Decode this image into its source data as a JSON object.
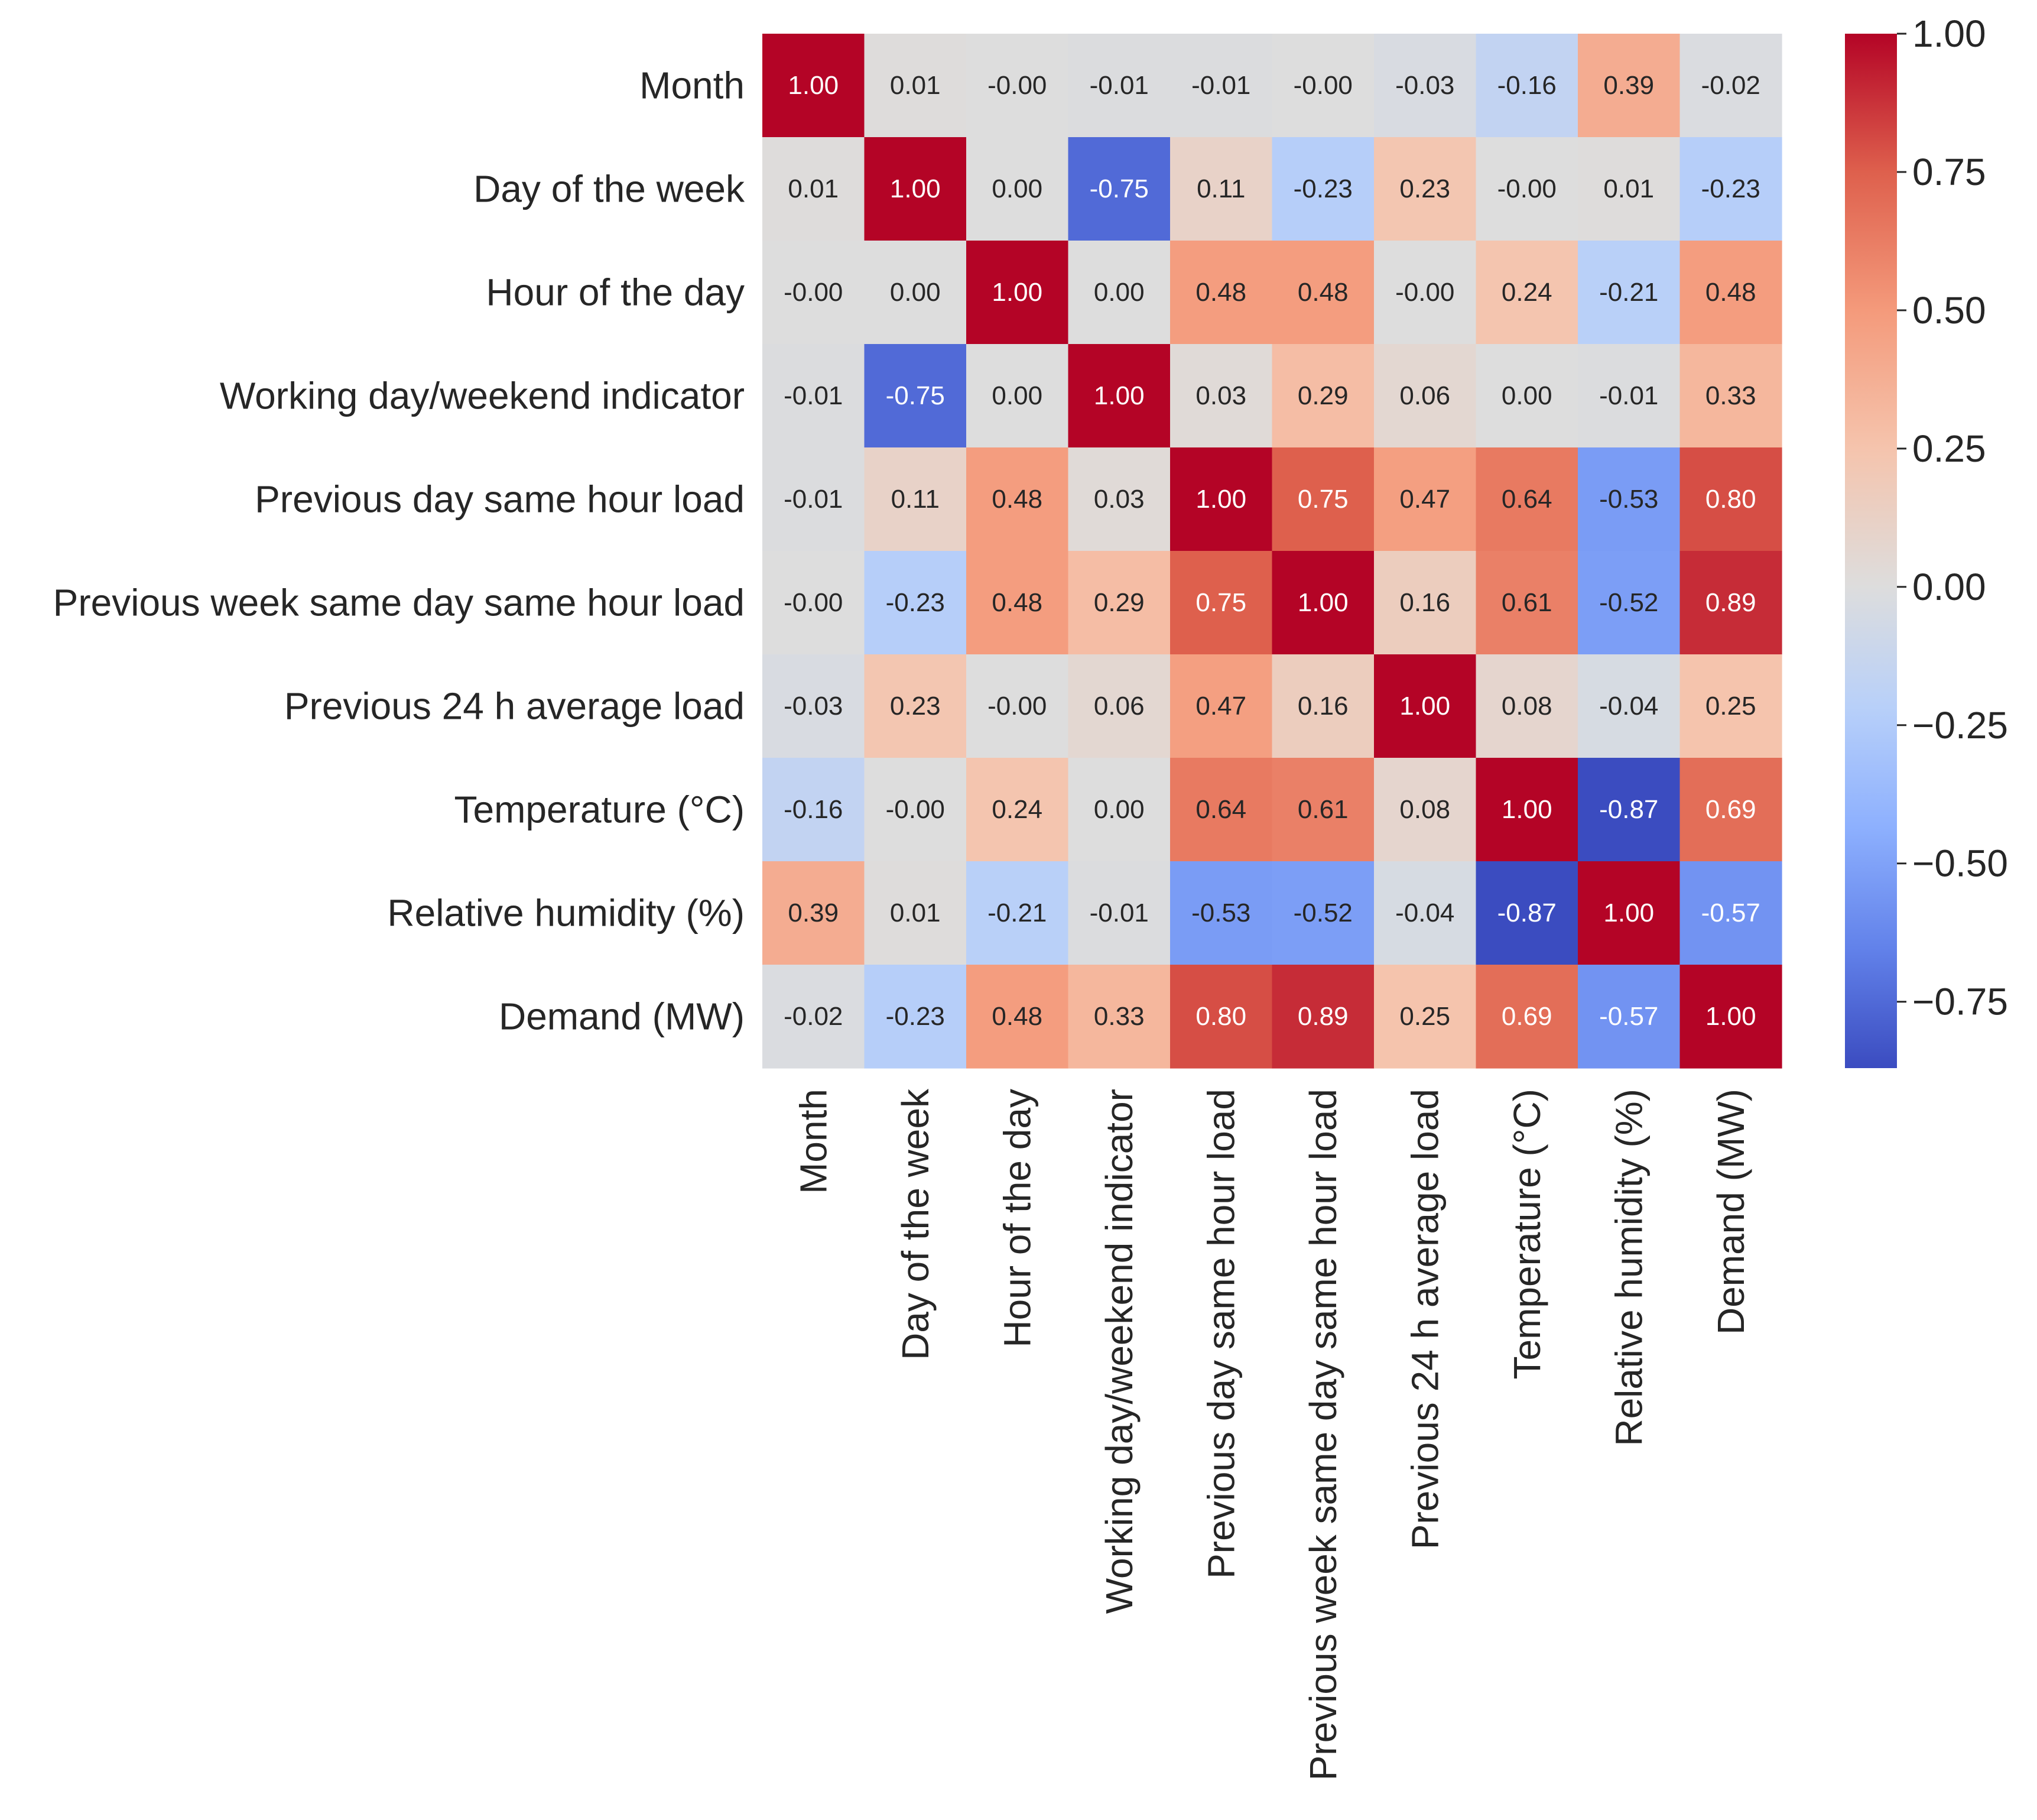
{
  "chart_data": {
    "type": "heatmap",
    "title": "",
    "colormap": "coolwarm",
    "variables": [
      "Month",
      "Day of the week",
      "Hour of the day",
      "Working day/weekend indicator",
      "Previous day same hour load",
      "Previous week same day same hour load",
      "Previous 24 h average load",
      "Temperature (°C)",
      "Relative humidity (%)",
      "Demand (MW)"
    ],
    "labels": [
      [
        "1.00",
        "0.01",
        "-0.00",
        "-0.01",
        "-0.01",
        "-0.00",
        "-0.03",
        "-0.16",
        "0.39",
        "-0.02"
      ],
      [
        "0.01",
        "1.00",
        "0.00",
        "-0.75",
        "0.11",
        "-0.23",
        "0.23",
        "-0.00",
        "0.01",
        "-0.23"
      ],
      [
        "-0.00",
        "0.00",
        "1.00",
        "0.00",
        "0.48",
        "0.48",
        "-0.00",
        "0.24",
        "-0.21",
        "0.48"
      ],
      [
        "-0.01",
        "-0.75",
        "0.00",
        "1.00",
        "0.03",
        "0.29",
        "0.06",
        "0.00",
        "-0.01",
        "0.33"
      ],
      [
        "-0.01",
        "0.11",
        "0.48",
        "0.03",
        "1.00",
        "0.75",
        "0.47",
        "0.64",
        "-0.53",
        "0.80"
      ],
      [
        "-0.00",
        "-0.23",
        "0.48",
        "0.29",
        "0.75",
        "1.00",
        "0.16",
        "0.61",
        "-0.52",
        "0.89"
      ],
      [
        "-0.03",
        "0.23",
        "-0.00",
        "0.06",
        "0.47",
        "0.16",
        "1.00",
        "0.08",
        "-0.04",
        "0.25"
      ],
      [
        "-0.16",
        "-0.00",
        "0.24",
        "0.00",
        "0.64",
        "0.61",
        "0.08",
        "1.00",
        "-0.87",
        "0.69"
      ],
      [
        "0.39",
        "0.01",
        "-0.21",
        "-0.01",
        "-0.53",
        "-0.52",
        "-0.04",
        "-0.87",
        "1.00",
        "-0.57"
      ],
      [
        "-0.02",
        "-0.23",
        "0.48",
        "0.33",
        "0.80",
        "0.89",
        "0.25",
        "0.69",
        "-0.57",
        "1.00"
      ]
    ],
    "colorbar": {
      "min": -0.87,
      "max": 1.0,
      "ticks": [
        1.0,
        0.75,
        0.5,
        0.25,
        0.0,
        -0.25,
        -0.5,
        -0.75
      ],
      "tick_labels": [
        "1.00",
        "0.75",
        "0.50",
        "0.25",
        "0.00",
        "−0.25",
        "−0.50",
        "−0.75"
      ]
    }
  }
}
